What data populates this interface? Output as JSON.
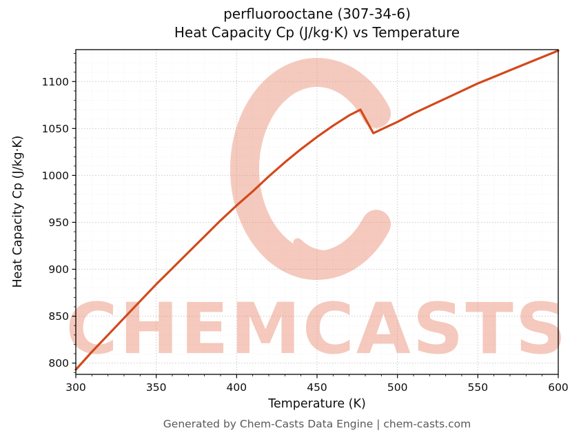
{
  "page": {
    "title_line1": "perfluorooctane (307-34-6)",
    "title_line2": "Heat Capacity Cp (J/kg·K) vs Temperature",
    "footer": "Generated by Chem-Casts Data Engine | chem-casts.com"
  },
  "watermark": {
    "text": "CHEMCASTS",
    "color": "#e98a6f",
    "opacity": 0.45
  },
  "chart_data": {
    "type": "line",
    "title": "perfluorooctane (307-34-6)",
    "subtitle": "Heat Capacity Cp (J/kg·K) vs Temperature",
    "xlabel": "Temperature (K)",
    "ylabel": "Heat Capacity Cp (J/kg·K)",
    "xlim": [
      300,
      600
    ],
    "ylim": [
      788,
      1134
    ],
    "xticks": [
      300,
      350,
      400,
      450,
      500,
      550,
      600
    ],
    "yticks": [
      800,
      850,
      900,
      950,
      1000,
      1050,
      1100
    ],
    "grid": "dotted",
    "legend": "none",
    "line_color": "#d2491b",
    "series": [
      {
        "name": "Heat Capacity Cp",
        "x": [
          300,
          310,
          320,
          330,
          340,
          350,
          360,
          370,
          380,
          390,
          400,
          410,
          420,
          430,
          440,
          450,
          460,
          470,
          477,
          485,
          490,
          500,
          510,
          520,
          530,
          540,
          550,
          560,
          570,
          580,
          590,
          600
        ],
        "y": [
          793,
          812,
          830,
          848,
          866,
          884,
          901,
          918,
          935,
          952,
          968,
          983,
          999,
          1014,
          1028,
          1041,
          1053,
          1064,
          1070,
          1045,
          1049,
          1057,
          1066,
          1074,
          1082,
          1090,
          1098,
          1105,
          1112,
          1119,
          1126,
          1133
        ]
      }
    ]
  }
}
